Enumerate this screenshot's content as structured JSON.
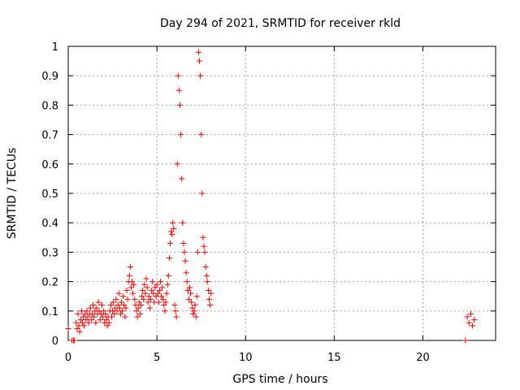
{
  "chart_data": {
    "type": "scatter",
    "title": "Day 294 of 2021, SRMTID for receiver rkld",
    "xlabel": "GPS time / hours",
    "ylabel": "SRMTID / TECUs",
    "xlim": [
      0,
      24.1
    ],
    "ylim": [
      0,
      1
    ],
    "xticks": [
      0,
      5,
      10,
      15,
      20
    ],
    "xtick_labels": [
      "0",
      "5",
      "10",
      "15",
      "20"
    ],
    "yticks": [
      0,
      0.1,
      0.2,
      0.3,
      0.4,
      0.5,
      0.6,
      0.7,
      0.8,
      0.9,
      1
    ],
    "ytick_labels": [
      "0",
      "0.1",
      "0.2",
      "0.3",
      "0.4",
      "0.5",
      "0.6",
      "0.7",
      "0.8",
      "0.9",
      "1"
    ],
    "grid": true,
    "marker_color": "#ff0000",
    "series": [
      {
        "name": "SRMTID",
        "marker": "plus",
        "points": [
          [
            0.0,
            0.04
          ],
          [
            0.2,
            0.0
          ],
          [
            0.3,
            0.0
          ],
          [
            0.35,
            0.0
          ],
          [
            0.45,
            0.06
          ],
          [
            0.5,
            0.04
          ],
          [
            0.55,
            0.09
          ],
          [
            0.6,
            0.05
          ],
          [
            0.65,
            0.03
          ],
          [
            0.7,
            0.07
          ],
          [
            0.75,
            0.1
          ],
          [
            0.8,
            0.06
          ],
          [
            0.85,
            0.08
          ],
          [
            0.9,
            0.05
          ],
          [
            0.95,
            0.09
          ],
          [
            1.0,
            0.07
          ],
          [
            1.05,
            0.1
          ],
          [
            1.1,
            0.08
          ],
          [
            1.15,
            0.06
          ],
          [
            1.2,
            0.09
          ],
          [
            1.25,
            0.11
          ],
          [
            1.3,
            0.07
          ],
          [
            1.35,
            0.09
          ],
          [
            1.4,
            0.12
          ],
          [
            1.45,
            0.08
          ],
          [
            1.5,
            0.1
          ],
          [
            1.55,
            0.06
          ],
          [
            1.6,
            0.11
          ],
          [
            1.65,
            0.09
          ],
          [
            1.7,
            0.13
          ],
          [
            1.75,
            0.1
          ],
          [
            1.8,
            0.07
          ],
          [
            1.85,
            0.09
          ],
          [
            1.9,
            0.12
          ],
          [
            1.95,
            0.08
          ],
          [
            2.0,
            0.1
          ],
          [
            2.05,
            0.06
          ],
          [
            2.1,
            0.09
          ],
          [
            2.15,
            0.07
          ],
          [
            2.2,
            0.05
          ],
          [
            2.25,
            0.08
          ],
          [
            2.3,
            0.06
          ],
          [
            2.35,
            0.1
          ],
          [
            2.4,
            0.12
          ],
          [
            2.45,
            0.08
          ],
          [
            2.5,
            0.1
          ],
          [
            2.55,
            0.13
          ],
          [
            2.6,
            0.09
          ],
          [
            2.65,
            0.11
          ],
          [
            2.7,
            0.14
          ],
          [
            2.75,
            0.1
          ],
          [
            2.8,
            0.12
          ],
          [
            2.85,
            0.16
          ],
          [
            2.9,
            0.11
          ],
          [
            2.95,
            0.09
          ],
          [
            3.0,
            0.13
          ],
          [
            3.05,
            0.1
          ],
          [
            3.1,
            0.15
          ],
          [
            3.15,
            0.12
          ],
          [
            3.2,
            0.08
          ],
          [
            3.25,
            0.11
          ],
          [
            3.3,
            0.17
          ],
          [
            3.35,
            0.14
          ],
          [
            3.4,
            0.2
          ],
          [
            3.45,
            0.22
          ],
          [
            3.5,
            0.25
          ],
          [
            3.55,
            0.18
          ],
          [
            3.6,
            0.2
          ],
          [
            3.65,
            0.16
          ],
          [
            3.7,
            0.19
          ],
          [
            3.75,
            0.14
          ],
          [
            3.8,
            0.12
          ],
          [
            3.85,
            0.1
          ],
          [
            3.9,
            0.08
          ],
          [
            3.95,
            0.11
          ],
          [
            4.0,
            0.13
          ],
          [
            4.05,
            0.09
          ],
          [
            4.1,
            0.12
          ],
          [
            4.15,
            0.15
          ],
          [
            4.2,
            0.17
          ],
          [
            4.25,
            0.14
          ],
          [
            4.3,
            0.19
          ],
          [
            4.35,
            0.16
          ],
          [
            4.4,
            0.21
          ],
          [
            4.45,
            0.18
          ],
          [
            4.5,
            0.13
          ],
          [
            4.55,
            0.15
          ],
          [
            4.6,
            0.11
          ],
          [
            4.65,
            0.14
          ],
          [
            4.7,
            0.17
          ],
          [
            4.75,
            0.2
          ],
          [
            4.8,
            0.16
          ],
          [
            4.85,
            0.13
          ],
          [
            4.9,
            0.18
          ],
          [
            4.95,
            0.15
          ],
          [
            5.0,
            0.19
          ],
          [
            5.05,
            0.16
          ],
          [
            5.1,
            0.13
          ],
          [
            5.15,
            0.17
          ],
          [
            5.2,
            0.2
          ],
          [
            5.25,
            0.15
          ],
          [
            5.3,
            0.18
          ],
          [
            5.35,
            0.14
          ],
          [
            5.4,
            0.12
          ],
          [
            5.45,
            0.1
          ],
          [
            5.5,
            0.13
          ],
          [
            5.55,
            0.16
          ],
          [
            5.6,
            0.19
          ],
          [
            5.65,
            0.22
          ],
          [
            5.7,
            0.28
          ],
          [
            5.75,
            0.33
          ],
          [
            5.8,
            0.37
          ],
          [
            5.85,
            0.36
          ],
          [
            5.9,
            0.4
          ],
          [
            5.95,
            0.38
          ],
          [
            6.0,
            0.12
          ],
          [
            6.05,
            0.1
          ],
          [
            6.1,
            0.08
          ],
          [
            6.15,
            0.6
          ],
          [
            6.2,
            0.9
          ],
          [
            6.25,
            0.85
          ],
          [
            6.3,
            0.8
          ],
          [
            6.35,
            0.7
          ],
          [
            6.4,
            0.55
          ],
          [
            6.45,
            0.4
          ],
          [
            6.5,
            0.33
          ],
          [
            6.55,
            0.3
          ],
          [
            6.6,
            0.27
          ],
          [
            6.65,
            0.23
          ],
          [
            6.7,
            0.2
          ],
          [
            6.75,
            0.17
          ],
          [
            6.8,
            0.14
          ],
          [
            6.85,
            0.18
          ],
          [
            6.9,
            0.16
          ],
          [
            6.95,
            0.13
          ],
          [
            7.0,
            0.11
          ],
          [
            7.05,
            0.09
          ],
          [
            7.1,
            0.1
          ],
          [
            7.15,
            0.12
          ],
          [
            7.2,
            0.08
          ],
          [
            7.25,
            0.15
          ],
          [
            7.3,
            0.3
          ],
          [
            7.35,
            0.98
          ],
          [
            7.4,
            0.95
          ],
          [
            7.45,
            0.9
          ],
          [
            7.5,
            0.7
          ],
          [
            7.55,
            0.5
          ],
          [
            7.6,
            0.35
          ],
          [
            7.65,
            0.32
          ],
          [
            7.7,
            0.3
          ],
          [
            7.75,
            0.25
          ],
          [
            7.8,
            0.22
          ],
          [
            7.85,
            0.2
          ],
          [
            7.9,
            0.17
          ],
          [
            7.95,
            0.14
          ],
          [
            8.0,
            0.12
          ],
          [
            8.05,
            0.16
          ],
          [
            22.4,
            0.0
          ],
          [
            22.5,
            0.08
          ],
          [
            22.6,
            0.06
          ],
          [
            22.7,
            0.09
          ],
          [
            22.8,
            0.05
          ],
          [
            22.9,
            0.07
          ]
        ]
      }
    ]
  }
}
